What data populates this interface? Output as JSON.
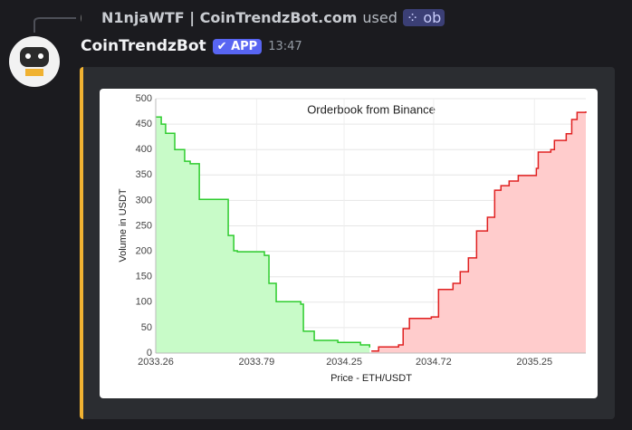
{
  "message": {
    "reply_user": "N1njaWTF | CoinTrendzBot.com",
    "reply_action": "used",
    "command": "ob",
    "author": "CoinTrendzBot",
    "badge": "APP",
    "time": "13:47"
  },
  "chart_data": {
    "type": "line",
    "step": true,
    "area": true,
    "title": "Orderbook from Binance",
    "x_label": "Price - ETH/USDT",
    "y_label": "Volume in USDT",
    "grid": true,
    "xlim": [
      2033.26,
      2035.52
    ],
    "xticks": [
      2033.26,
      2033.79,
      2034.25,
      2034.72,
      2035.25
    ],
    "ylim": [
      0,
      500
    ],
    "yticks": [
      0,
      50,
      100,
      150,
      200,
      250,
      300,
      350,
      400,
      450,
      500
    ],
    "series": [
      {
        "color": "#2ecc2e",
        "fill": "#c8fbc8",
        "x": [
          2033.26,
          2033.289,
          2033.312,
          2033.36,
          2033.412,
          2033.441,
          2033.489,
          2033.598,
          2033.641,
          2033.67,
          2033.689,
          2033.831,
          2033.855,
          2033.893,
          2034.022,
          2034.036,
          2034.093,
          2034.217,
          2034.336,
          2034.384
        ],
        "values": [
          464,
          450,
          432,
          400,
          377,
          372,
          302,
          302,
          231,
          201,
          199,
          192,
          137,
          101,
          96,
          43,
          25,
          21,
          16,
          11
        ]
      },
      {
        "color": "#e02020",
        "fill": "#ffcccc",
        "x": [
          2034.393,
          2034.431,
          2034.536,
          2034.56,
          2034.593,
          2034.708,
          2034.746,
          2034.822,
          2034.86,
          2034.903,
          2034.946,
          2035.003,
          2035.041,
          2035.074,
          2035.117,
          2035.165,
          2035.26,
          2035.27,
          2035.336,
          2035.355,
          2035.417,
          2035.446,
          2035.474,
          2035.52
        ],
        "values": [
          4,
          12,
          16,
          48,
          68,
          71,
          125,
          137,
          160,
          187,
          240,
          267,
          320,
          329,
          338,
          349,
          363,
          395,
          400,
          418,
          431,
          459,
          473,
          475
        ]
      }
    ]
  }
}
